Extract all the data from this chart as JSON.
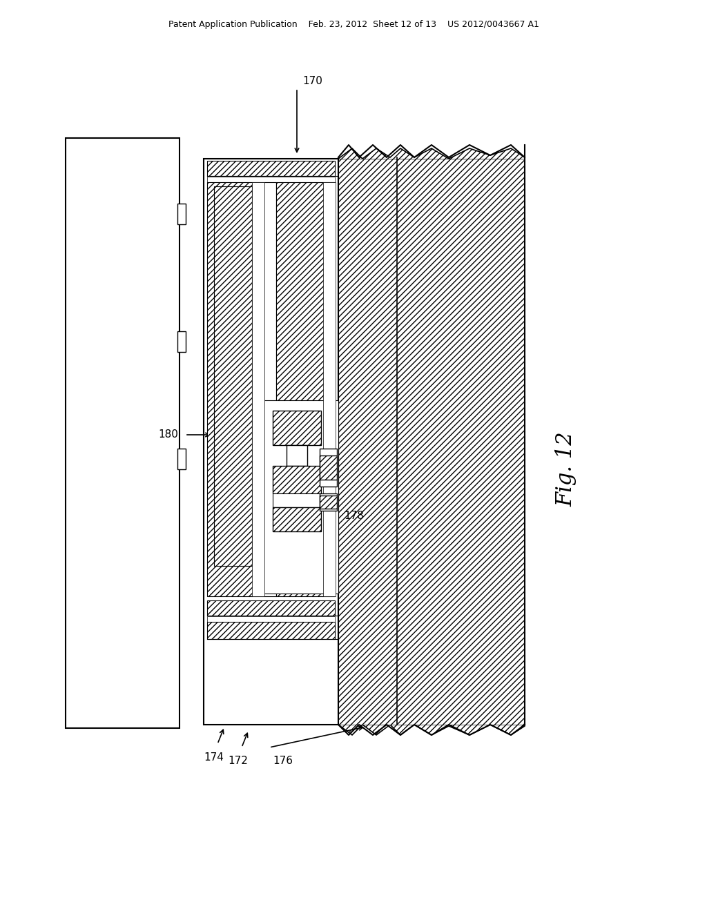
{
  "bg_color": "#ffffff",
  "header_text": "Patent Application Publication    Feb. 23, 2012  Sheet 12 of 13    US 2012/0043667 A1",
  "fig_label": "Fig. 12"
}
